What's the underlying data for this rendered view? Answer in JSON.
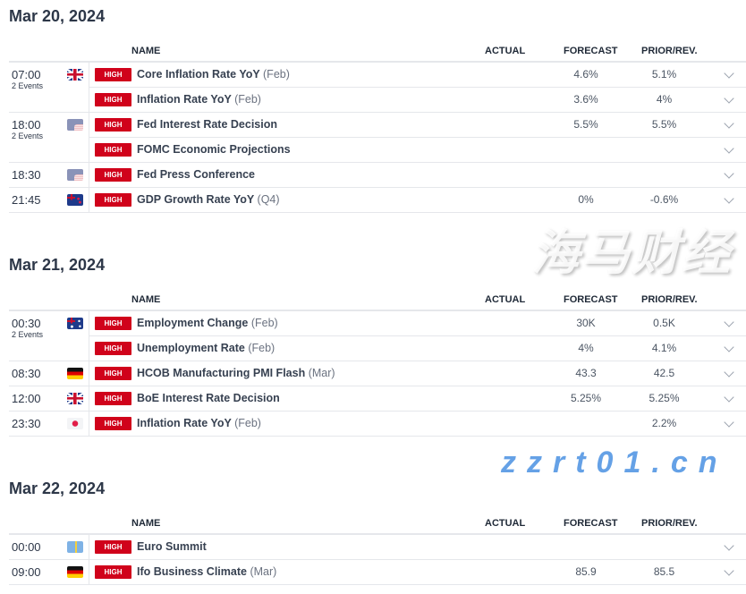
{
  "columns": {
    "name": "NAME",
    "actual": "ACTUAL",
    "forecast": "FORECAST",
    "prior": "PRIOR/REV."
  },
  "impact_color": "#d0021b",
  "days": [
    {
      "date": "Mar 20, 2024",
      "groups": [
        {
          "time": "07:00",
          "events_label": "2 Events",
          "flag": "gb",
          "rows": [
            {
              "impact": "HIGH",
              "name": "Core Inflation Rate YoY",
              "period": "(Feb)",
              "actual": "",
              "forecast": "4.6%",
              "prior": "5.1%"
            },
            {
              "impact": "HIGH",
              "name": "Inflation Rate YoY",
              "period": "(Feb)",
              "actual": "",
              "forecast": "3.6%",
              "prior": "4%"
            }
          ]
        },
        {
          "time": "18:00",
          "events_label": "2 Events",
          "flag": "us",
          "rows": [
            {
              "impact": "HIGH",
              "name": "Fed Interest Rate Decision",
              "period": "",
              "actual": "",
              "forecast": "5.5%",
              "prior": "5.5%"
            },
            {
              "impact": "HIGH",
              "name": "FOMC Economic Projections",
              "period": "",
              "actual": "",
              "forecast": "",
              "prior": ""
            }
          ]
        },
        {
          "time": "18:30",
          "events_label": "",
          "flag": "us",
          "rows": [
            {
              "impact": "HIGH",
              "name": "Fed Press Conference",
              "period": "",
              "actual": "",
              "forecast": "",
              "prior": ""
            }
          ]
        },
        {
          "time": "21:45",
          "events_label": "",
          "flag": "nz",
          "rows": [
            {
              "impact": "HIGH",
              "name": "GDP Growth Rate YoY",
              "period": "(Q4)",
              "actual": "",
              "forecast": "0%",
              "prior": "-0.6%"
            }
          ]
        }
      ]
    },
    {
      "date": "Mar 21, 2024",
      "groups": [
        {
          "time": "00:30",
          "events_label": "2 Events",
          "flag": "au",
          "rows": [
            {
              "impact": "HIGH",
              "name": "Employment Change",
              "period": "(Feb)",
              "actual": "",
              "forecast": "30K",
              "prior": "0.5K"
            },
            {
              "impact": "HIGH",
              "name": "Unemployment Rate",
              "period": "(Feb)",
              "actual": "",
              "forecast": "4%",
              "prior": "4.1%"
            }
          ]
        },
        {
          "time": "08:30",
          "events_label": "",
          "flag": "de",
          "rows": [
            {
              "impact": "HIGH",
              "name": "HCOB Manufacturing PMI Flash",
              "period": "(Mar)",
              "actual": "",
              "forecast": "43.3",
              "prior": "42.5"
            }
          ]
        },
        {
          "time": "12:00",
          "events_label": "",
          "flag": "gb",
          "rows": [
            {
              "impact": "HIGH",
              "name": "BoE Interest Rate Decision",
              "period": "",
              "actual": "",
              "forecast": "5.25%",
              "prior": "5.25%"
            }
          ]
        },
        {
          "time": "23:30",
          "events_label": "",
          "flag": "jp",
          "rows": [
            {
              "impact": "HIGH",
              "name": "Inflation Rate YoY",
              "period": "(Feb)",
              "actual": "",
              "forecast": "",
              "prior": "2.2%"
            }
          ]
        }
      ]
    },
    {
      "date": "Mar 22, 2024",
      "groups": [
        {
          "time": "00:00",
          "events_label": "",
          "flag": "eu",
          "rows": [
            {
              "impact": "HIGH",
              "name": "Euro Summit",
              "period": "",
              "actual": "",
              "forecast": "",
              "prior": ""
            }
          ]
        },
        {
          "time": "09:00",
          "events_label": "",
          "flag": "de",
          "rows": [
            {
              "impact": "HIGH",
              "name": "Ifo Business Climate",
              "period": "(Mar)",
              "actual": "",
              "forecast": "85.9",
              "prior": "85.5"
            }
          ]
        }
      ]
    }
  ],
  "watermark": {
    "cn": "海马财经",
    "url": "zzrt01.cn"
  }
}
